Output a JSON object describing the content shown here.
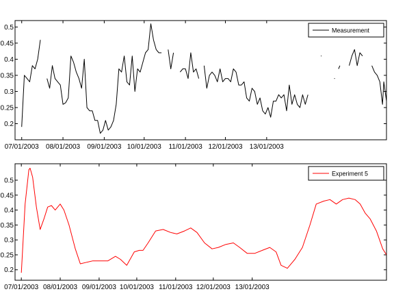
{
  "chart_data": [
    {
      "type": "line",
      "series": [
        {
          "name": "Measurement",
          "color": "#000000",
          "points": [
            [
              "2003-07-01",
              0.19
            ],
            [
              "2003-07-03",
              0.35
            ],
            [
              "2003-07-05",
              0.34
            ],
            [
              "2003-07-07",
              0.33
            ],
            [
              "2003-07-09",
              0.38
            ],
            [
              "2003-07-11",
              0.37
            ],
            [
              "2003-07-13",
              0.4
            ],
            [
              "2003-07-15",
              0.46
            ],
            null,
            [
              "2003-07-20",
              0.34
            ],
            [
              "2003-07-22",
              0.31
            ],
            [
              "2003-07-24",
              0.38
            ],
            [
              "2003-07-26",
              0.34
            ],
            [
              "2003-07-28",
              0.33
            ],
            [
              "2003-07-30",
              0.32
            ],
            [
              "2003-08-01",
              0.26
            ],
            [
              "2003-08-03",
              0.265
            ],
            [
              "2003-08-05",
              0.28
            ],
            [
              "2003-08-07",
              0.41
            ],
            [
              "2003-08-09",
              0.39
            ],
            [
              "2003-08-11",
              0.36
            ],
            [
              "2003-08-13",
              0.34
            ],
            [
              "2003-08-15",
              0.31
            ],
            [
              "2003-08-17",
              0.4
            ],
            [
              "2003-08-19",
              0.25
            ],
            [
              "2003-08-21",
              0.24
            ],
            [
              "2003-08-23",
              0.24
            ],
            [
              "2003-08-25",
              0.21
            ],
            [
              "2003-08-27",
              0.21
            ],
            [
              "2003-08-29",
              0.17
            ],
            [
              "2003-08-31",
              0.18
            ],
            [
              "2003-09-02",
              0.21
            ],
            [
              "2003-09-04",
              0.18
            ],
            [
              "2003-09-06",
              0.19
            ],
            [
              "2003-09-08",
              0.21
            ],
            [
              "2003-09-10",
              0.26
            ],
            [
              "2003-09-12",
              0.37
            ],
            [
              "2003-09-14",
              0.36
            ],
            [
              "2003-09-16",
              0.41
            ],
            [
              "2003-09-18",
              0.33
            ],
            [
              "2003-09-20",
              0.32
            ],
            [
              "2003-09-22",
              0.41
            ],
            [
              "2003-09-24",
              0.3
            ],
            [
              "2003-09-26",
              0.37
            ],
            [
              "2003-09-28",
              0.36
            ],
            [
              "2003-09-30",
              0.39
            ],
            [
              "2003-10-02",
              0.42
            ],
            [
              "2003-10-04",
              0.43
            ],
            [
              "2003-10-06",
              0.51
            ],
            [
              "2003-10-08",
              0.46
            ],
            [
              "2003-10-10",
              0.43
            ],
            [
              "2003-10-12",
              0.42
            ],
            [
              "2003-10-14",
              0.42
            ],
            null,
            [
              "2003-10-19",
              0.43
            ],
            [
              "2003-10-21",
              0.37
            ],
            [
              "2003-10-23",
              0.42
            ],
            null,
            [
              "2003-10-28",
              0.36
            ],
            [
              "2003-10-30",
              0.37
            ],
            [
              "2003-11-01",
              0.37
            ],
            [
              "2003-11-03",
              0.34
            ],
            [
              "2003-11-05",
              0.42
            ],
            [
              "2003-11-07",
              0.36
            ],
            [
              "2003-11-09",
              0.37
            ],
            [
              "2003-11-11",
              0.34
            ],
            null,
            [
              "2003-11-15",
              0.38
            ],
            [
              "2003-11-17",
              0.31
            ],
            [
              "2003-11-19",
              0.35
            ],
            [
              "2003-11-21",
              0.36
            ],
            [
              "2003-11-23",
              0.35
            ],
            [
              "2003-11-25",
              0.33
            ],
            [
              "2003-11-27",
              0.37
            ],
            [
              "2003-11-29",
              0.33
            ],
            [
              "2003-12-01",
              0.34
            ],
            [
              "2003-12-03",
              0.34
            ],
            [
              "2003-12-05",
              0.33
            ],
            [
              "2003-12-07",
              0.37
            ],
            [
              "2003-12-09",
              0.36
            ],
            [
              "2003-12-11",
              0.32
            ],
            [
              "2003-12-13",
              0.32
            ],
            [
              "2003-12-15",
              0.33
            ],
            [
              "2003-12-17",
              0.28
            ],
            [
              "2003-12-19",
              0.27
            ],
            [
              "2003-12-21",
              0.31
            ],
            [
              "2003-12-23",
              0.3
            ],
            [
              "2003-12-25",
              0.26
            ],
            [
              "2003-12-27",
              0.28
            ],
            [
              "2003-12-29",
              0.24
            ],
            [
              "2003-12-31",
              0.23
            ],
            [
              "2004-01-02",
              0.25
            ],
            [
              "2004-01-04",
              0.22
            ],
            [
              "2004-01-06",
              0.27
            ],
            [
              "2004-01-08",
              0.27
            ],
            [
              "2004-01-10",
              0.29
            ],
            [
              "2004-01-12",
              0.28
            ],
            [
              "2004-01-14",
              0.29
            ],
            [
              "2004-01-16",
              0.24
            ],
            [
              "2004-01-18",
              0.32
            ],
            [
              "2004-01-20",
              0.26
            ],
            [
              "2004-01-22",
              0.29
            ],
            [
              "2004-01-24",
              0.26
            ],
            [
              "2004-01-26",
              0.25
            ],
            [
              "2004-01-28",
              0.29
            ],
            [
              "2004-01-30",
              0.26
            ],
            [
              "2004-02-01",
              0.29
            ],
            null,
            [
              "2004-02-11",
              0.41
            ],
            [
              "2004-02-11",
              0.41
            ],
            null,
            [
              "2004-02-21",
              0.34
            ],
            [
              "2004-02-21",
              0.34
            ],
            null,
            [
              "2004-02-24",
              0.37
            ],
            [
              "2004-02-25",
              0.38
            ],
            null,
            [
              "2004-03-03",
              0.38
            ],
            [
              "2004-03-05",
              0.41
            ],
            [
              "2004-03-07",
              0.43
            ],
            [
              "2004-03-09",
              0.38
            ],
            [
              "2004-03-11",
              0.42
            ],
            [
              "2004-03-13",
              0.41
            ],
            null,
            [
              "2004-03-20",
              0.38
            ],
            [
              "2004-03-22",
              0.36
            ],
            [
              "2004-03-24",
              0.35
            ],
            [
              "2004-03-26",
              0.33
            ],
            [
              "2004-03-28",
              0.26
            ],
            [
              "2004-03-29",
              0.33
            ],
            [
              "2004-03-31",
              0.27
            ]
          ]
        }
      ],
      "x_type": "date",
      "xlim": [
        "2003-07-01",
        "2004-03-31"
      ],
      "ylim": [
        0.15,
        0.52
      ],
      "xticks": [
        "2003-07-01",
        "2003-08-01",
        "2003-09-01",
        "2003-10-01",
        "2003-11-01",
        "2003-12-01",
        "2004-01-01"
      ],
      "xtick_labels": [
        "07/01/2003",
        "08/01/2003",
        "09/01/2003",
        "10/01/2003",
        "11/01/2003",
        "12/01/2003",
        "13/01/2003"
      ],
      "yticks": [
        0.2,
        0.25,
        0.3,
        0.35,
        0.4,
        0.45,
        0.5
      ],
      "ytick_labels": [
        "0.2",
        "0.25",
        "0.3",
        "0.35",
        "0.4",
        "0.45",
        "0.5"
      ],
      "grid": false,
      "legend": "top-right",
      "title": "",
      "xlabel": "",
      "ylabel": ""
    },
    {
      "type": "line",
      "series": [
        {
          "name": "Experiment 5",
          "color": "#ff0000",
          "points": [
            [
              "2003-07-01",
              0.19
            ],
            [
              "2003-07-04",
              0.42
            ],
            [
              "2003-07-07",
              0.535
            ],
            [
              "2003-07-08",
              0.54
            ],
            [
              "2003-07-10",
              0.51
            ],
            [
              "2003-07-13",
              0.41
            ],
            [
              "2003-07-16",
              0.335
            ],
            [
              "2003-07-19",
              0.37
            ],
            [
              "2003-07-22",
              0.41
            ],
            [
              "2003-07-25",
              0.415
            ],
            [
              "2003-07-28",
              0.4
            ],
            [
              "2003-08-01",
              0.42
            ],
            [
              "2003-08-04",
              0.4
            ],
            [
              "2003-08-08",
              0.35
            ],
            [
              "2003-08-13",
              0.27
            ],
            [
              "2003-08-17",
              0.22
            ],
            [
              "2003-08-22",
              0.225
            ],
            [
              "2003-08-27",
              0.23
            ],
            [
              "2003-09-03",
              0.23
            ],
            [
              "2003-09-08",
              0.23
            ],
            [
              "2003-09-14",
              0.245
            ],
            [
              "2003-09-18",
              0.235
            ],
            [
              "2003-09-23",
              0.215
            ],
            [
              "2003-09-29",
              0.26
            ],
            [
              "2003-10-03",
              0.265
            ],
            [
              "2003-10-06",
              0.265
            ],
            [
              "2003-10-10",
              0.29
            ],
            [
              "2003-10-16",
              0.33
            ],
            [
              "2003-10-22",
              0.335
            ],
            [
              "2003-10-28",
              0.325
            ],
            [
              "2003-11-02",
              0.32
            ],
            [
              "2003-11-08",
              0.33
            ],
            [
              "2003-11-13",
              0.34
            ],
            [
              "2003-11-18",
              0.325
            ],
            [
              "2003-11-24",
              0.29
            ],
            [
              "2003-11-30",
              0.27
            ],
            [
              "2003-12-05",
              0.275
            ],
            [
              "2003-12-11",
              0.285
            ],
            [
              "2003-12-17",
              0.29
            ],
            [
              "2003-12-22",
              0.275
            ],
            [
              "2003-12-28",
              0.255
            ],
            [
              "2004-01-03",
              0.255
            ],
            [
              "2004-01-09",
              0.265
            ],
            [
              "2004-01-15",
              0.275
            ],
            [
              "2004-01-20",
              0.26
            ],
            [
              "2004-01-24",
              0.215
            ],
            [
              "2004-01-29",
              0.205
            ],
            [
              "2004-02-04",
              0.235
            ],
            [
              "2004-02-10",
              0.275
            ],
            [
              "2004-02-16",
              0.35
            ],
            [
              "2004-02-21",
              0.42
            ],
            [
              "2004-02-27",
              0.43
            ],
            [
              "2004-03-03",
              0.435
            ],
            [
              "2004-03-08",
              0.42
            ],
            [
              "2004-03-13",
              0.435
            ],
            [
              "2004-03-18",
              0.44
            ],
            [
              "2004-03-23",
              0.435
            ],
            [
              "2004-03-27",
              0.42
            ],
            [
              "2004-03-31",
              0.39
            ],
            [
              "2004-04-04",
              0.37
            ],
            [
              "2004-04-09",
              0.33
            ],
            [
              "2004-04-14",
              0.27
            ],
            [
              "2004-04-17",
              0.25
            ]
          ]
        }
      ],
      "x_type": "date",
      "xlim": [
        "2003-07-01",
        "2004-04-17"
      ],
      "ylim": [
        0.165,
        0.555
      ],
      "xticks": [
        "2003-07-01",
        "2003-08-01",
        "2003-09-01",
        "2003-10-01",
        "2003-11-01",
        "2003-12-01",
        "2004-01-01"
      ],
      "xtick_labels": [
        "07/01/2003",
        "08/01/2003",
        "09/01/2003",
        "10/01/2003",
        "11/01/2003",
        "12/01/2003",
        "13/01/2003"
      ],
      "yticks": [
        0.2,
        0.25,
        0.3,
        0.35,
        0.4,
        0.45,
        0.5
      ],
      "ytick_labels": [
        "0.2",
        "0.25",
        "0.3",
        "0.35",
        "0.4",
        "0.45",
        "0.5"
      ],
      "grid": false,
      "legend": "top-right",
      "title": "",
      "xlabel": "",
      "ylabel": ""
    }
  ]
}
